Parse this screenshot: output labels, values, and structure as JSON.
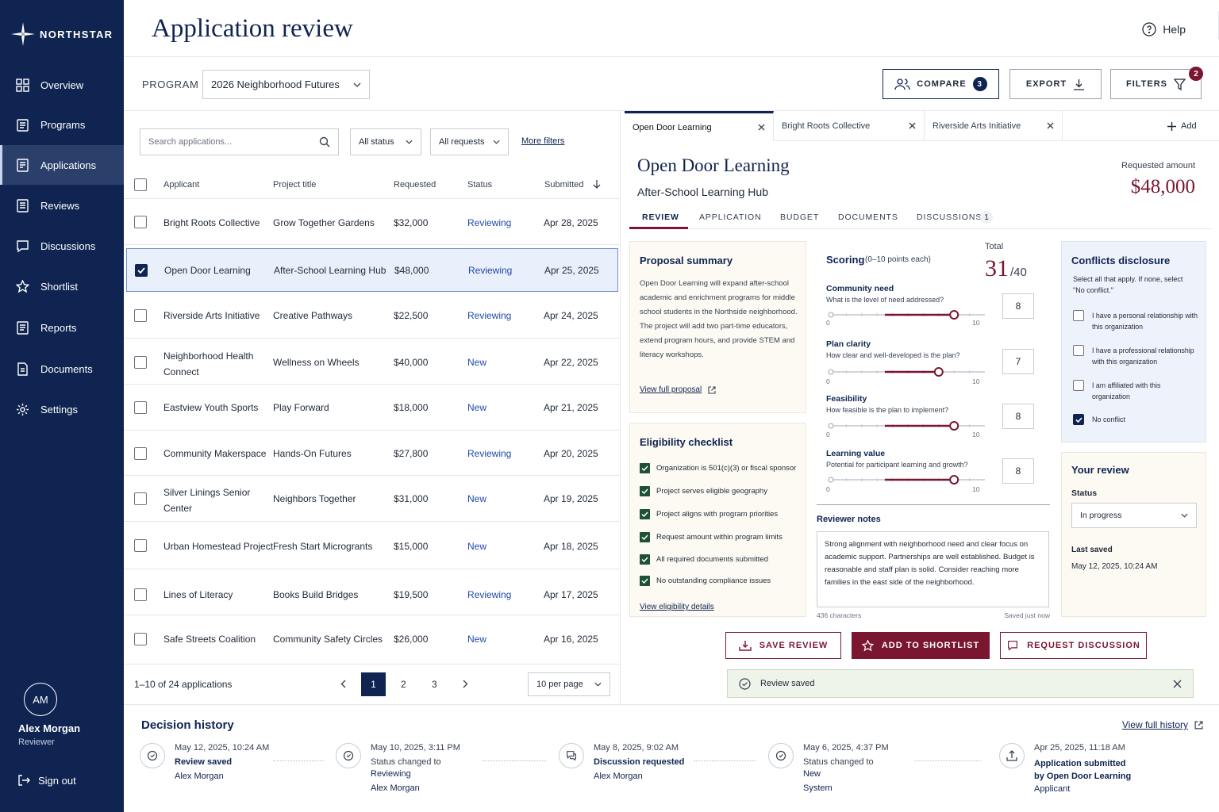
{
  "app": {
    "brand": "NORTHSTAR",
    "page_title": "Application review",
    "help": "Help"
  },
  "nav": [
    {
      "label": "Overview",
      "icon": "grid-icon"
    },
    {
      "label": "Programs",
      "icon": "clipboard-icon"
    },
    {
      "label": "Applications",
      "icon": "document-icon",
      "active": true
    },
    {
      "label": "Reviews",
      "icon": "checklist-icon"
    },
    {
      "label": "Discussions",
      "icon": "chat-icon"
    },
    {
      "label": "Shortlist",
      "icon": "star-icon"
    },
    {
      "label": "Reports",
      "icon": "report-icon"
    },
    {
      "label": "Documents",
      "icon": "file-icon"
    },
    {
      "label": "Settings",
      "icon": "gear-icon"
    }
  ],
  "user": {
    "initials": "AM",
    "name": "Alex Morgan",
    "role": "Reviewer",
    "sign_out": "Sign out"
  },
  "toolbar": {
    "program_label": "PROGRAM",
    "program_value": "2026 Neighborhood Futures",
    "compare": "COMPARE",
    "compare_count": "3",
    "export": "EXPORT",
    "filters": "FILTERS",
    "filters_count": "2"
  },
  "list": {
    "search_placeholder": "Search applications...",
    "status_filter": "All status",
    "requests_filter": "All requests",
    "more_filters": "More filters",
    "columns": [
      "Applicant",
      "Project title",
      "Requested",
      "Status",
      "Submitted"
    ],
    "rows": [
      {
        "applicant": "Bright Roots Collective",
        "project": "Grow Together Gardens",
        "requested": "$32,000",
        "status": "Reviewing",
        "submitted": "Apr 28, 2025"
      },
      {
        "applicant": "Open Door Learning",
        "project": "After-School Learning Hub",
        "requested": "$48,000",
        "status": "Reviewing",
        "submitted": "Apr 25, 2025",
        "selected": true
      },
      {
        "applicant": "Riverside Arts Initiative",
        "project": "Creative Pathways",
        "requested": "$22,500",
        "status": "Reviewing",
        "submitted": "Apr 24, 2025"
      },
      {
        "applicant": "Neighborhood Health Connect",
        "project": "Wellness on Wheels",
        "requested": "$40,000",
        "status": "New",
        "submitted": "Apr 22, 2025"
      },
      {
        "applicant": "Eastview Youth Sports",
        "project": "Play Forward",
        "requested": "$18,000",
        "status": "New",
        "submitted": "Apr 21, 2025"
      },
      {
        "applicant": "Community Makerspace",
        "project": "Hands-On Futures",
        "requested": "$27,800",
        "status": "Reviewing",
        "submitted": "Apr 20, 2025"
      },
      {
        "applicant": "Silver Linings Senior Center",
        "project": "Neighbors Together",
        "requested": "$31,000",
        "status": "New",
        "submitted": "Apr 19, 2025"
      },
      {
        "applicant": "Urban Homestead Project",
        "project": "Fresh Start Microgrants",
        "requested": "$15,000",
        "status": "New",
        "submitted": "Apr 18, 2025"
      },
      {
        "applicant": "Lines of Literacy",
        "project": "Books Build Bridges",
        "requested": "$19,500",
        "status": "Reviewing",
        "submitted": "Apr 17, 2025"
      },
      {
        "applicant": "Safe Streets Coalition",
        "project": "Community Safety Circles",
        "requested": "$26,000",
        "status": "New",
        "submitted": "Apr 16, 2025"
      }
    ],
    "pagination": {
      "summary": "1–10 of 24 applications",
      "pages": [
        "1",
        "2",
        "3"
      ],
      "current": "1",
      "per_page": "10 per page"
    }
  },
  "detail": {
    "tabs": [
      "Open Door Learning",
      "Bright Roots Collective",
      "Riverside Arts Initiative"
    ],
    "add_tab": "Add",
    "org": "Open Door Learning",
    "project": "After-School Learning Hub",
    "requested_label": "Requested amount",
    "requested_value": "$48,000",
    "subtabs": [
      "REVIEW",
      "APPLICATION",
      "BUDGET",
      "DOCUMENTS",
      "DISCUSSIONS"
    ],
    "discussions_count": "1",
    "proposal": {
      "title": "Proposal summary",
      "text": "Open Door Learning will expand after-school academic and enrichment programs for middle school students in the Northside neighborhood. The project will add two part-time educators, extend program hours, and provide STEM and literacy workshops.",
      "link": "View full proposal"
    },
    "eligibility": {
      "title": "Eligibility checklist",
      "items": [
        "Organization is 501(c)(3) or fiscal sponsor",
        "Project serves eligible geography",
        "Project aligns with program priorities",
        "Request amount within program limits",
        "All required documents submitted",
        "No outstanding compliance issues"
      ],
      "link": "View eligibility details"
    },
    "scoring": {
      "title": "Scoring",
      "subtitle": "(0–10 points each)",
      "total_label": "Total",
      "total": "31",
      "total_max": "/40",
      "min_label": "0",
      "max_label": "10",
      "criteria": [
        {
          "name": "Community need",
          "question": "What is the level of need addressed?",
          "score": "8"
        },
        {
          "name": "Plan clarity",
          "question": "How clear and well-developed is the plan?",
          "score": "7"
        },
        {
          "name": "Feasibility",
          "question": "How feasible is the plan to implement?",
          "score": "8"
        },
        {
          "name": "Learning value",
          "question": "Potential for participant learning and growth?",
          "score": "8"
        }
      ]
    },
    "notes": {
      "title": "Reviewer notes",
      "text": "Strong alignment with neighborhood need and clear focus on academic support. Partnerships are well established. Budget is reasonable and staff plan is solid. Consider reaching more families in the east side of the neighborhood.",
      "chars": "436 characters",
      "saved": "Saved just now"
    },
    "conflicts": {
      "title": "Conflicts disclosure",
      "instructions": "Select all that apply. If none, select \"No conflict.\"",
      "options": [
        "I have a personal relationship with this organization",
        "I have a professional relationship with this organization",
        "I am affiliated with this organization",
        "No conflict"
      ],
      "checked": "No conflict"
    },
    "your_review": {
      "title": "Your review",
      "status_label": "Status",
      "status_value": "In progress",
      "last_saved_label": "Last saved",
      "last_saved_value": "May 12, 2025, 10:24 AM"
    },
    "actions": {
      "save": "SAVE REVIEW",
      "shortlist": "ADD TO SHORTLIST",
      "discussion": "REQUEST DISCUSSION"
    },
    "toast": "Review saved"
  },
  "history": {
    "title": "Decision history",
    "link": "View full history",
    "items": [
      {
        "time": "May 12, 2025, 10:24 AM",
        "event": "Review saved",
        "by": "Alex Morgan"
      },
      {
        "time": "May 10, 2025, 3:11 PM",
        "event_prefix": "Status changed to",
        "event": "Reviewing",
        "by": "Alex Morgan"
      },
      {
        "time": "May 8, 2025, 9:02 AM",
        "event": "Discussion requested",
        "by": "Alex Morgan"
      },
      {
        "time": "May 6, 2025, 4:37 PM",
        "event_prefix": "Status changed to",
        "event": "New",
        "by": "System"
      },
      {
        "time": "Apr 25, 2025, 11:18 AM",
        "event": "Application submitted by Open Door Learning",
        "by": "Applicant"
      }
    ]
  },
  "colors": {
    "navy": "#0f2451",
    "maroon": "#7a1630",
    "green": "#1f5132"
  }
}
